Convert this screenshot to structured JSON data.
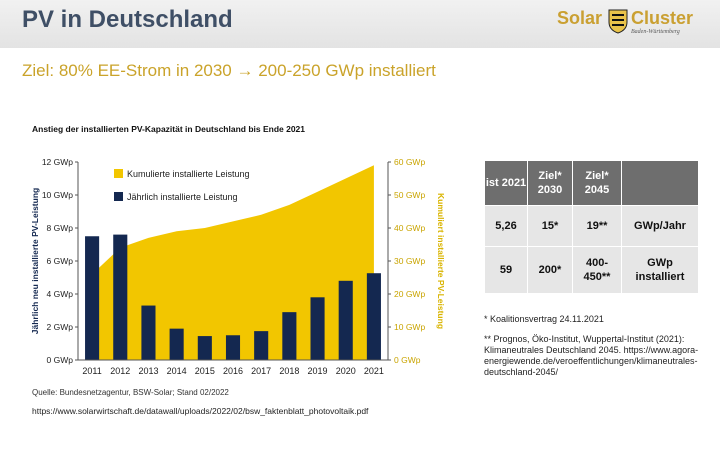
{
  "slide": {
    "title": "PV in Deutschland",
    "goal": "Ziel: 80% EE-Strom in 2030 → 200-250 GWp installiert"
  },
  "logo": {
    "word1": "Solar",
    "word2": "Cluster",
    "sub": "Baden-Württemberg",
    "crest_icon": "crest-icon"
  },
  "chart_data": {
    "type": "bar",
    "title": "Anstieg der installierten PV-Kapazität in Deutschland bis Ende 2021",
    "categories": [
      "2011",
      "2012",
      "2013",
      "2014",
      "2015",
      "2016",
      "2017",
      "2018",
      "2019",
      "2020",
      "2021"
    ],
    "ylabel": "Jährlich neu installierte PV-Leistung",
    "y2label": "Kumuliert installierte PV-Leistung",
    "ylim": [
      0,
      12
    ],
    "y2lim": [
      0,
      60
    ],
    "yticks": [
      "0 GWp",
      "2 GWp",
      "4 GWp",
      "6 GWp",
      "8 GWp",
      "10 GWp",
      "12 GWp"
    ],
    "y2ticks": [
      "0 GWp",
      "10 GWp",
      "20 GWp",
      "30 GWp",
      "40 GWp",
      "50 GWp",
      "60 GWp"
    ],
    "legend_position": "top-left",
    "series": [
      {
        "name": "Kumulierte installierte Leistung",
        "type": "area",
        "axis": "right",
        "color": "#f2c600",
        "values": [
          26,
          34,
          37,
          39,
          40,
          42,
          44,
          47,
          51,
          55,
          59
        ]
      },
      {
        "name": "Jährlich installierte Leistung",
        "type": "bar",
        "axis": "left",
        "color": "#142850",
        "values": [
          7.5,
          7.6,
          3.3,
          1.9,
          1.45,
          1.5,
          1.75,
          2.9,
          3.8,
          4.8,
          5.26
        ]
      }
    ]
  },
  "source": "Quelle: Bundesnetzagentur, BSW-Solar; Stand 02/2022",
  "url": "https://www.solarwirtschaft.de/datawall/uploads/2022/02/bsw_faktenblatt_photovoltaik.pdf",
  "table": {
    "headers": [
      "ist 2021",
      "Ziel* 2030",
      "Ziel* 2045",
      ""
    ],
    "rows": [
      [
        "5,26",
        "15*",
        "19**",
        "GWp/Jahr"
      ],
      [
        "59",
        "200*",
        "400-450**",
        "GWp installiert"
      ]
    ]
  },
  "footnotes": {
    "f1": "* Koalitionsvertrag 24.11.2021",
    "f2": "** Prognos, Öko-Institut, Wuppertal-Institut (2021): Klimaneutrales Deutschland 2045. https://www.agora-energiewende.de/veroeffentlichungen/klimaneutrales-deutschland-2045/"
  }
}
